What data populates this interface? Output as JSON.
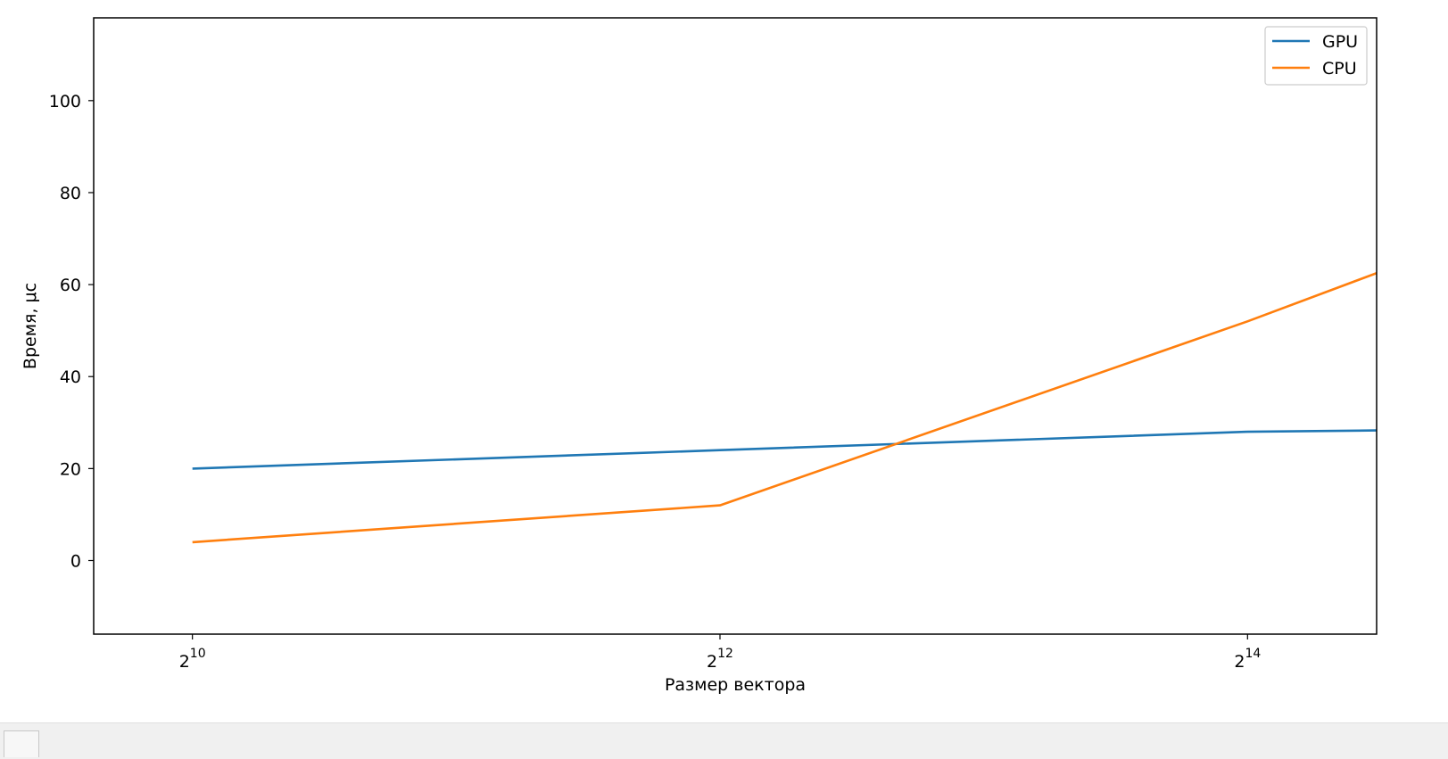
{
  "chart_data": {
    "type": "line",
    "title": "",
    "xlabel": "Размер вектора",
    "ylabel": "Время, μс",
    "x_scale": "log2",
    "x_ticks": [
      {
        "value": 1024,
        "base": "2",
        "exp": "10"
      },
      {
        "value": 4096,
        "base": "2",
        "exp": "12"
      },
      {
        "value": 16384,
        "base": "2",
        "exp": "14"
      }
    ],
    "y_ticks": [
      0,
      20,
      40,
      60,
      80,
      100
    ],
    "xlim": [
      790,
      23000
    ],
    "ylim": [
      -16,
      118
    ],
    "grid": false,
    "legend_position": "top-right",
    "x": [
      1024,
      4096,
      16384,
      23000
    ],
    "series": [
      {
        "name": "GPU",
        "color": "#1f77b4",
        "values": [
          20,
          24,
          28,
          28.3
        ]
      },
      {
        "name": "CPU",
        "color": "#ff7f0e",
        "values": [
          4,
          12,
          52,
          62.5
        ]
      }
    ]
  }
}
